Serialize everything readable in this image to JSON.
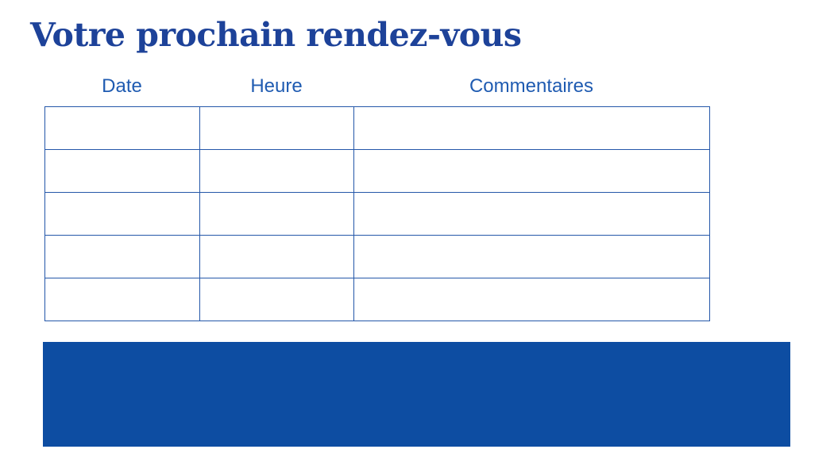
{
  "page": {
    "title": "Votre prochain rendez-vous"
  },
  "table": {
    "headers": [
      "Date",
      "Heure",
      "Commentaires"
    ],
    "rows": [
      [
        "",
        "",
        ""
      ],
      [
        "",
        "",
        ""
      ],
      [
        "",
        "",
        ""
      ],
      [
        "",
        "",
        ""
      ],
      [
        "",
        "",
        ""
      ]
    ]
  },
  "colors": {
    "title": "#1d4299",
    "header_text": "#1f5bb1",
    "table_border": "#2457a9",
    "footer_bar": "#0d4da2",
    "page_background": "#ffffff"
  }
}
